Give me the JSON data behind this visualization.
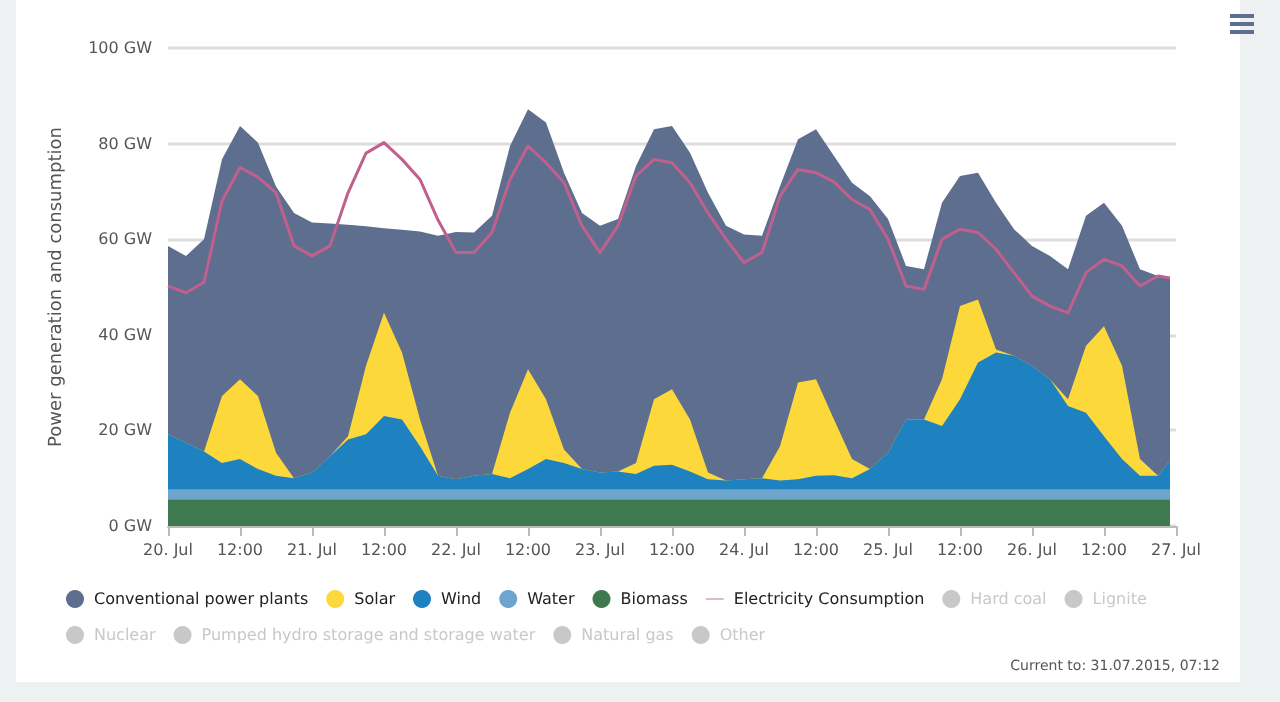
{
  "chart_data": {
    "type": "area",
    "stacked": true,
    "ylabel": "Power generation and consumption",
    "x": [
      "2015-07-20T00:00",
      "2015-07-20T03:00",
      "2015-07-20T06:00",
      "2015-07-20T09:00",
      "2015-07-20T12:00",
      "2015-07-20T15:00",
      "2015-07-20T18:00",
      "2015-07-20T21:00",
      "2015-07-21T00:00",
      "2015-07-21T03:00",
      "2015-07-21T06:00",
      "2015-07-21T09:00",
      "2015-07-21T12:00",
      "2015-07-21T15:00",
      "2015-07-21T18:00",
      "2015-07-21T21:00",
      "2015-07-22T00:00",
      "2015-07-22T03:00",
      "2015-07-22T06:00",
      "2015-07-22T09:00",
      "2015-07-22T12:00",
      "2015-07-22T15:00",
      "2015-07-22T18:00",
      "2015-07-22T21:00",
      "2015-07-23T00:00",
      "2015-07-23T03:00",
      "2015-07-23T06:00",
      "2015-07-23T09:00",
      "2015-07-23T12:00",
      "2015-07-23T15:00",
      "2015-07-23T18:00",
      "2015-07-23T21:00",
      "2015-07-24T00:00",
      "2015-07-24T03:00",
      "2015-07-24T06:00",
      "2015-07-24T09:00",
      "2015-07-24T12:00",
      "2015-07-24T15:00",
      "2015-07-24T18:00",
      "2015-07-24T21:00",
      "2015-07-25T00:00",
      "2015-07-25T03:00",
      "2015-07-25T06:00",
      "2015-07-25T09:00",
      "2015-07-25T12:00",
      "2015-07-25T15:00",
      "2015-07-25T18:00",
      "2015-07-25T21:00",
      "2015-07-26T00:00",
      "2015-07-26T03:00",
      "2015-07-26T06:00",
      "2015-07-26T09:00",
      "2015-07-26T12:00",
      "2015-07-26T15:00",
      "2015-07-26T18:00",
      "2015-07-26T21:00",
      "2015-07-26T23:00"
    ],
    "series": [
      {
        "name": "Biomass",
        "color": "#3f7a4e",
        "values": [
          5.5,
          5.5,
          5.5,
          5.5,
          5.5,
          5.5,
          5.5,
          5.5,
          5.5,
          5.5,
          5.5,
          5.5,
          5.5,
          5.5,
          5.5,
          5.5,
          5.5,
          5.5,
          5.5,
          5.5,
          5.5,
          5.5,
          5.5,
          5.5,
          5.5,
          5.5,
          5.5,
          5.5,
          5.5,
          5.5,
          5.5,
          5.5,
          5.5,
          5.5,
          5.5,
          5.5,
          5.5,
          5.5,
          5.5,
          5.5,
          5.5,
          5.5,
          5.5,
          5.5,
          5.5,
          5.5,
          5.5,
          5.5,
          5.5,
          5.5,
          5.5,
          5.5,
          5.5,
          5.5,
          5.5,
          5.5,
          5.5
        ]
      },
      {
        "name": "Water",
        "color": "#6ea5cf",
        "values": [
          2.2,
          2.2,
          2.2,
          2.2,
          2.2,
          2.2,
          2.2,
          2.2,
          2.2,
          2.2,
          2.2,
          2.2,
          2.2,
          2.2,
          2.2,
          2.2,
          2.2,
          2.2,
          2.2,
          2.2,
          2.2,
          2.2,
          2.2,
          2.2,
          2.2,
          2.2,
          2.2,
          2.2,
          2.2,
          2.2,
          2.2,
          2.2,
          2.2,
          2.2,
          2.2,
          2.2,
          2.2,
          2.2,
          2.2,
          2.2,
          2.2,
          2.2,
          2.2,
          2.2,
          2.2,
          2.2,
          2.2,
          2.2,
          2.2,
          2.2,
          2.2,
          2.2,
          2.2,
          2.2,
          2.2,
          2.2,
          2.2
        ]
      },
      {
        "name": "Wind",
        "color": "#1f82c0",
        "values": [
          11.5,
          9.7,
          7.9,
          5.5,
          6.3,
          4.2,
          2.8,
          2.3,
          3.5,
          6.9,
          10.4,
          11.5,
          15.3,
          14.6,
          9,
          2.8,
          2.1,
          2.8,
          3.2,
          2.3,
          4.2,
          6.3,
          5.5,
          4.2,
          3.5,
          3.7,
          3.2,
          4.9,
          5.1,
          3.7,
          2.1,
          1.8,
          2.1,
          2.3,
          1.8,
          2.1,
          2.8,
          2.9,
          2.3,
          4.2,
          7.6,
          14.6,
          14.6,
          13.2,
          18.8,
          26.5,
          28.6,
          27.9,
          25.8,
          23,
          17.4,
          16,
          11.1,
          6.3,
          2.8,
          2.8,
          6
        ]
      },
      {
        "name": "Solar",
        "color": "#fdd83b",
        "values": [
          0,
          0,
          0,
          14,
          16.7,
          15.3,
          4.8,
          0,
          0,
          0,
          0.7,
          14.3,
          21.6,
          14,
          5.6,
          0,
          0,
          0,
          0,
          13.7,
          20.9,
          12.5,
          2.8,
          0,
          0,
          0,
          2.3,
          13.9,
          15.8,
          10.9,
          1.4,
          0,
          0,
          0,
          7.2,
          20.2,
          20.2,
          11.7,
          4,
          0,
          0,
          0,
          0,
          9.8,
          19.5,
          13.2,
          0.6,
          0,
          0,
          0,
          1.4,
          14,
          23,
          19.5,
          3.5,
          0,
          0
        ]
      },
      {
        "name": "Conventional power plants",
        "color": "#5d6e8e",
        "values": [
          39.4,
          39.1,
          44.4,
          49.5,
          53,
          53,
          55.7,
          55.5,
          52.3,
          48.7,
          44.2,
          29.2,
          17.7,
          25.7,
          39.3,
          50.2,
          51.7,
          50.9,
          54,
          55.8,
          54.4,
          57.9,
          57.9,
          53.6,
          51.6,
          52.8,
          62.1,
          56.5,
          55.1,
          55.8,
          58.5,
          53.3,
          51.2,
          50.7,
          54.4,
          50.9,
          52.3,
          55.1,
          57.8,
          57.1,
          48.9,
          32.1,
          31.4,
          36.9,
          27.2,
          26.5,
          30.7,
          26.5,
          25.1,
          25.8,
          27.2,
          27.2,
          25.8,
          29.3,
          39.7,
          41.8,
          37.9
        ]
      },
      {
        "name": "Electricity Consumption",
        "type": "line",
        "color": "#c0608c",
        "values": [
          50.2,
          48.8,
          51,
          68,
          75,
          73,
          69.7,
          58.6,
          56.5,
          58.6,
          69.7,
          78,
          80.2,
          76.7,
          72.5,
          64,
          57.2,
          57.2,
          61.4,
          72.5,
          79.5,
          76,
          71.8,
          62.8,
          57.2,
          62.8,
          73.2,
          76.7,
          76,
          71.8,
          65.5,
          60,
          55.1,
          57.2,
          69,
          74.6,
          73.9,
          72,
          68.3,
          66.2,
          60,
          50.2,
          49.5,
          60,
          62.1,
          61.4,
          57.9,
          53,
          48.1,
          46,
          44.6,
          53,
          55.8,
          54.4,
          50.2,
          52.3,
          51.9
        ]
      },
      {
        "name": "Hard coal",
        "color": "#cccccc",
        "values": [
          null,
          null,
          null,
          null,
          null,
          null,
          null,
          null,
          null,
          null,
          null,
          null,
          null,
          null,
          null,
          null,
          null,
          null,
          null,
          null,
          null,
          null,
          null,
          null,
          null,
          null,
          null,
          null,
          null,
          null,
          null,
          null,
          null,
          null,
          null,
          null,
          null,
          null,
          null,
          null,
          null,
          null,
          null,
          null,
          null,
          null,
          null,
          null,
          null,
          null,
          null,
          null,
          null,
          null,
          null,
          null,
          null
        ]
      },
      {
        "name": "Lignite",
        "color": "#cccccc",
        "values": [
          null,
          null,
          null,
          null,
          null,
          null,
          null,
          null,
          null,
          null,
          null,
          null,
          null,
          null,
          null,
          null,
          null,
          null,
          null,
          null,
          null,
          null,
          null,
          null,
          null,
          null,
          null,
          null,
          null,
          null,
          null,
          null,
          null,
          null,
          null,
          null,
          null,
          null,
          null,
          null,
          null,
          null,
          null,
          null,
          null,
          null,
          null,
          null,
          null,
          null,
          null,
          null,
          null,
          null,
          null,
          null,
          null
        ]
      },
      {
        "name": "Nuclear",
        "color": "#cccccc",
        "values": [
          null,
          null,
          null,
          null,
          null,
          null,
          null,
          null,
          null,
          null,
          null,
          null,
          null,
          null,
          null,
          null,
          null,
          null,
          null,
          null,
          null,
          null,
          null,
          null,
          null,
          null,
          null,
          null,
          null,
          null,
          null,
          null,
          null,
          null,
          null,
          null,
          null,
          null,
          null,
          null,
          null,
          null,
          null,
          null,
          null,
          null,
          null,
          null,
          null,
          null,
          null,
          null,
          null,
          null,
          null,
          null,
          null
        ]
      },
      {
        "name": "Pumped hydro storage and storage water",
        "color": "#cccccc",
        "values": [
          null,
          null,
          null,
          null,
          null,
          null,
          null,
          null,
          null,
          null,
          null,
          null,
          null,
          null,
          null,
          null,
          null,
          null,
          null,
          null,
          null,
          null,
          null,
          null,
          null,
          null,
          null,
          null,
          null,
          null,
          null,
          null,
          null,
          null,
          null,
          null,
          null,
          null,
          null,
          null,
          null,
          null,
          null,
          null,
          null,
          null,
          null,
          null,
          null,
          null,
          null,
          null,
          null,
          null,
          null,
          null,
          null
        ]
      },
      {
        "name": "Natural gas",
        "color": "#cccccc",
        "values": [
          null,
          null,
          null,
          null,
          null,
          null,
          null,
          null,
          null,
          null,
          null,
          null,
          null,
          null,
          null,
          null,
          null,
          null,
          null,
          null,
          null,
          null,
          null,
          null,
          null,
          null,
          null,
          null,
          null,
          null,
          null,
          null,
          null,
          null,
          null,
          null,
          null,
          null,
          null,
          null,
          null,
          null,
          null,
          null,
          null,
          null,
          null,
          null,
          null,
          null,
          null,
          null,
          null,
          null,
          null,
          null,
          null
        ]
      },
      {
        "name": "Other",
        "color": "#cccccc",
        "values": [
          null,
          null,
          null,
          null,
          null,
          null,
          null,
          null,
          null,
          null,
          null,
          null,
          null,
          null,
          null,
          null,
          null,
          null,
          null,
          null,
          null,
          null,
          null,
          null,
          null,
          null,
          null,
          null,
          null,
          null,
          null,
          null,
          null,
          null,
          null,
          null,
          null,
          null,
          null,
          null,
          null,
          null,
          null,
          null,
          null,
          null,
          null,
          null,
          null,
          null,
          null,
          null,
          null,
          null,
          null,
          null,
          null
        ]
      }
    ],
    "xlim": [
      "2015-07-20T00:00",
      "2015-07-27T00:00"
    ],
    "xticks": [
      {
        "value": "2015-07-20T00:00",
        "label": "20. Jul"
      },
      {
        "value": "2015-07-20T12:00",
        "label": "12:00"
      },
      {
        "value": "2015-07-21T00:00",
        "label": "21. Jul"
      },
      {
        "value": "2015-07-21T12:00",
        "label": "12:00"
      },
      {
        "value": "2015-07-22T00:00",
        "label": "22. Jul"
      },
      {
        "value": "2015-07-22T12:00",
        "label": "12:00"
      },
      {
        "value": "2015-07-23T00:00",
        "label": "23. Jul"
      },
      {
        "value": "2015-07-23T12:00",
        "label": "12:00"
      },
      {
        "value": "2015-07-24T00:00",
        "label": "24. Jul"
      },
      {
        "value": "2015-07-24T12:00",
        "label": "12:00"
      },
      {
        "value": "2015-07-25T00:00",
        "label": "25. Jul"
      },
      {
        "value": "2015-07-25T12:00",
        "label": "12:00"
      },
      {
        "value": "2015-07-26T00:00",
        "label": "26. Jul"
      },
      {
        "value": "2015-07-26T12:00",
        "label": "12:00"
      },
      {
        "value": "2015-07-27T00:00",
        "label": "27. Jul"
      }
    ],
    "ylim": [
      0,
      100
    ],
    "yticks": [
      {
        "value": 0,
        "label": "0 GW"
      },
      {
        "value": 20,
        "label": "20 GW"
      },
      {
        "value": 40,
        "label": "40 GW"
      },
      {
        "value": 60,
        "label": "60 GW"
      },
      {
        "value": 80,
        "label": "80 GW"
      },
      {
        "value": 100,
        "label": "100 GW"
      }
    ],
    "grid": "y",
    "legend": "bottom",
    "marker": "none",
    "annotations": [
      "Current to: 31.07.2015, 07:12"
    ]
  }
}
